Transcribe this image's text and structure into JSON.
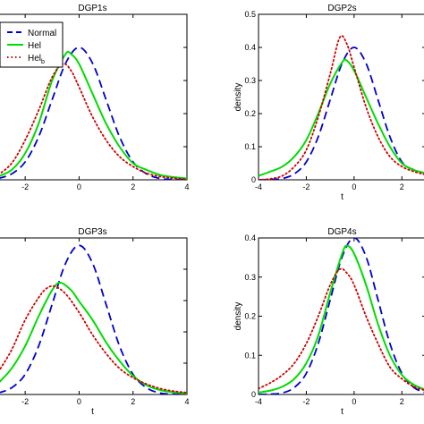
{
  "chart_data": [
    {
      "type": "line",
      "title": "DGP1s",
      "xlabel": "",
      "ylabel": "",
      "xlim": [
        -3,
        4
      ],
      "ylim": [
        0,
        0.5
      ],
      "xticks": [
        -2,
        0,
        2,
        4
      ],
      "xtick_labels": [
        "-2",
        "0",
        "2",
        "4"
      ],
      "yticks": [],
      "ytick_labels": [],
      "legend": {
        "placement": "top-left",
        "entries": [
          "Normal",
          "Hel",
          "Hel_b"
        ]
      },
      "series": [
        {
          "name": "Normal",
          "color": "#0000cc",
          "style": "dashed",
          "x": [
            -3,
            -2.5,
            -2,
            -1.5,
            -1,
            -0.5,
            0,
            0.5,
            1,
            1.5,
            2,
            2.5,
            3,
            3.5,
            4
          ],
          "y": [
            0.004,
            0.018,
            0.054,
            0.13,
            0.242,
            0.352,
            0.4,
            0.352,
            0.242,
            0.13,
            0.054,
            0.018,
            0.004,
            0.001,
            0.0
          ]
        },
        {
          "name": "Hel",
          "color": "#00dd00",
          "style": "solid",
          "x": [
            -3,
            -2.5,
            -2,
            -1.5,
            -1,
            -0.5,
            -0.3,
            0,
            0.5,
            1,
            1.5,
            2,
            2.5,
            3,
            3.5,
            4
          ],
          "y": [
            0.01,
            0.03,
            0.08,
            0.17,
            0.3,
            0.38,
            0.38,
            0.35,
            0.26,
            0.17,
            0.1,
            0.05,
            0.03,
            0.015,
            0.008,
            0.004
          ]
        },
        {
          "name": "Hel_b",
          "color": "#cc0000",
          "style": "dotted",
          "x": [
            -3,
            -2.5,
            -2,
            -1.5,
            -1,
            -0.6,
            -0.3,
            0,
            0.5,
            1,
            1.5,
            2,
            2.5,
            3,
            3.5,
            4
          ],
          "y": [
            0.015,
            0.05,
            0.12,
            0.21,
            0.31,
            0.35,
            0.33,
            0.28,
            0.19,
            0.12,
            0.07,
            0.04,
            0.02,
            0.01,
            0.005,
            0.002
          ]
        }
      ]
    },
    {
      "type": "line",
      "title": "DGP2s",
      "xlabel": "t",
      "ylabel": "density",
      "xlim": [
        -4,
        3
      ],
      "ylim": [
        0,
        0.5
      ],
      "xticks": [
        -4,
        -2,
        0,
        2
      ],
      "xtick_labels": [
        "-4",
        "-2",
        "0",
        "2"
      ],
      "yticks": [
        0,
        0.1,
        0.2,
        0.3,
        0.4,
        0.5
      ],
      "ytick_labels": [
        "0",
        "0.1",
        "0.2",
        "0.3",
        "0.4",
        "0.5"
      ],
      "series": [
        {
          "name": "Normal",
          "color": "#0000cc",
          "style": "dashed",
          "x": [
            -4,
            -3.5,
            -3,
            -2.5,
            -2,
            -1.5,
            -1,
            -0.5,
            0,
            0.5,
            1,
            1.5,
            2,
            2.5,
            3
          ],
          "y": [
            0.0,
            0.001,
            0.004,
            0.018,
            0.054,
            0.13,
            0.242,
            0.352,
            0.4,
            0.352,
            0.242,
            0.13,
            0.054,
            0.03,
            0.02
          ]
        },
        {
          "name": "Hel",
          "color": "#00dd00",
          "style": "solid",
          "x": [
            -4,
            -3.5,
            -3,
            -2.5,
            -2,
            -1.5,
            -1,
            -0.5,
            -0.3,
            0,
            0.5,
            1,
            1.5,
            2,
            2.5,
            3
          ],
          "y": [
            0.012,
            0.025,
            0.04,
            0.07,
            0.12,
            0.2,
            0.29,
            0.355,
            0.36,
            0.33,
            0.25,
            0.17,
            0.1,
            0.05,
            0.03,
            0.02
          ]
        },
        {
          "name": "Hel_b",
          "color": "#cc0000",
          "style": "dotted",
          "x": [
            -4,
            -3.5,
            -3,
            -2.5,
            -2,
            -1.5,
            -1,
            -0.6,
            -0.3,
            0,
            0.5,
            1,
            1.5,
            2,
            2.5,
            3
          ],
          "y": [
            0.0,
            0.003,
            0.012,
            0.04,
            0.09,
            0.19,
            0.32,
            0.43,
            0.41,
            0.34,
            0.22,
            0.13,
            0.07,
            0.04,
            0.025,
            0.015
          ]
        }
      ]
    },
    {
      "type": "line",
      "title": "DGP3s",
      "xlabel": "t",
      "ylabel": "",
      "xlim": [
        -3,
        4
      ],
      "ylim": [
        0,
        0.42
      ],
      "xticks": [
        -2,
        0,
        2,
        4
      ],
      "xtick_labels": [
        "-2",
        "0",
        "2",
        "4"
      ],
      "yticks": [],
      "ytick_labels": [],
      "series": [
        {
          "name": "Normal",
          "color": "#0000cc",
          "style": "dashed",
          "x": [
            -3,
            -2.5,
            -2,
            -1.5,
            -1,
            -0.5,
            0,
            0.5,
            1,
            1.5,
            2,
            2.5,
            3,
            3.5,
            4
          ],
          "y": [
            0.004,
            0.018,
            0.054,
            0.13,
            0.242,
            0.352,
            0.4,
            0.352,
            0.242,
            0.13,
            0.054,
            0.018,
            0.004,
            0.001,
            0.0
          ]
        },
        {
          "name": "Hel",
          "color": "#00dd00",
          "style": "solid",
          "x": [
            -3,
            -2.5,
            -2,
            -1.5,
            -1,
            -0.7,
            -0.3,
            0,
            0.5,
            1,
            1.5,
            2,
            2.5,
            3,
            3.5,
            4
          ],
          "y": [
            0.03,
            0.07,
            0.13,
            0.21,
            0.28,
            0.3,
            0.28,
            0.25,
            0.2,
            0.14,
            0.09,
            0.05,
            0.025,
            0.012,
            0.006,
            0.003
          ]
        },
        {
          "name": "Hel_b",
          "color": "#cc0000",
          "style": "dotted",
          "x": [
            -3,
            -2.5,
            -2,
            -1.5,
            -1.2,
            -0.9,
            -0.5,
            0,
            0.5,
            1,
            1.5,
            2,
            2.5,
            3,
            3.5,
            4
          ],
          "y": [
            0.06,
            0.12,
            0.2,
            0.26,
            0.285,
            0.29,
            0.27,
            0.22,
            0.16,
            0.11,
            0.07,
            0.045,
            0.028,
            0.016,
            0.009,
            0.005
          ]
        }
      ]
    },
    {
      "type": "line",
      "title": "DGP4s",
      "xlabel": "t",
      "ylabel": "density",
      "xlim": [
        -4,
        3
      ],
      "ylim": [
        0,
        0.4
      ],
      "xticks": [
        -4,
        -2,
        0,
        2
      ],
      "xtick_labels": [
        "-4",
        "-2",
        "0",
        "2"
      ],
      "yticks": [
        0,
        0.1,
        0.2,
        0.3,
        0.4
      ],
      "ytick_labels": [
        "0",
        "0.1",
        "0.2",
        "0.3",
        "0.4"
      ],
      "series": [
        {
          "name": "Normal",
          "color": "#0000cc",
          "style": "dashed",
          "x": [
            -4,
            -3.5,
            -3,
            -2.5,
            -2,
            -1.5,
            -1,
            -0.5,
            0,
            0.5,
            1,
            1.5,
            2,
            2.5,
            3
          ],
          "y": [
            0.0,
            0.001,
            0.004,
            0.018,
            0.054,
            0.13,
            0.242,
            0.352,
            0.4,
            0.352,
            0.242,
            0.13,
            0.054,
            0.018,
            0.004
          ]
        },
        {
          "name": "Hel",
          "color": "#00dd00",
          "style": "solid",
          "x": [
            -4,
            -3.5,
            -3,
            -2.5,
            -2,
            -1.5,
            -1,
            -0.5,
            -0.3,
            0,
            0.5,
            1,
            1.5,
            2,
            2.5,
            3
          ],
          "y": [
            0.005,
            0.01,
            0.02,
            0.04,
            0.08,
            0.15,
            0.26,
            0.36,
            0.38,
            0.36,
            0.28,
            0.18,
            0.1,
            0.05,
            0.025,
            0.012
          ]
        },
        {
          "name": "Hel_b",
          "color": "#cc0000",
          "style": "dotted",
          "x": [
            -4,
            -3.5,
            -3,
            -2.5,
            -2,
            -1.5,
            -1,
            -0.6,
            -0.3,
            0,
            0.5,
            1,
            1.5,
            2,
            2.5,
            3
          ],
          "y": [
            0.015,
            0.03,
            0.05,
            0.08,
            0.13,
            0.2,
            0.28,
            0.32,
            0.31,
            0.28,
            0.2,
            0.13,
            0.07,
            0.04,
            0.02,
            0.01
          ]
        }
      ]
    }
  ]
}
